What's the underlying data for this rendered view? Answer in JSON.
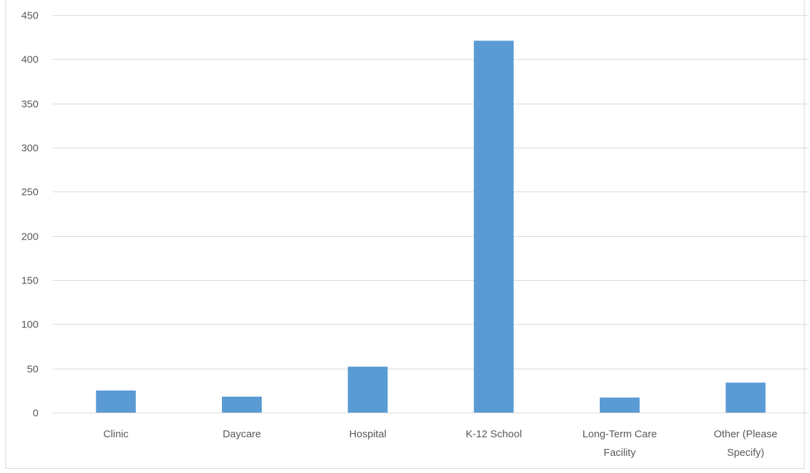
{
  "chart_data": {
    "type": "bar",
    "title": "",
    "xlabel": "",
    "ylabel": "",
    "categories": [
      "Clinic",
      "Daycare",
      "Hospital",
      "K-12 School",
      "Long-Term Care Facility",
      "Other (Please Specify)"
    ],
    "category_label_lines": [
      [
        "Clinic"
      ],
      [
        "Daycare"
      ],
      [
        "Hospital"
      ],
      [
        "K-12 School"
      ],
      [
        "Long-Term Care",
        "Facility"
      ],
      [
        "Other (Please",
        "Specify)"
      ]
    ],
    "values": [
      25,
      18,
      52,
      421,
      17,
      34
    ],
    "ylim": [
      0,
      450
    ],
    "yticks": [
      0,
      50,
      100,
      150,
      200,
      250,
      300,
      350,
      400,
      450
    ],
    "grid": true,
    "legend": "none",
    "colors": {
      "bar": "#5b9bd5",
      "grid": "#d9d9d9",
      "text": "#595959"
    }
  }
}
